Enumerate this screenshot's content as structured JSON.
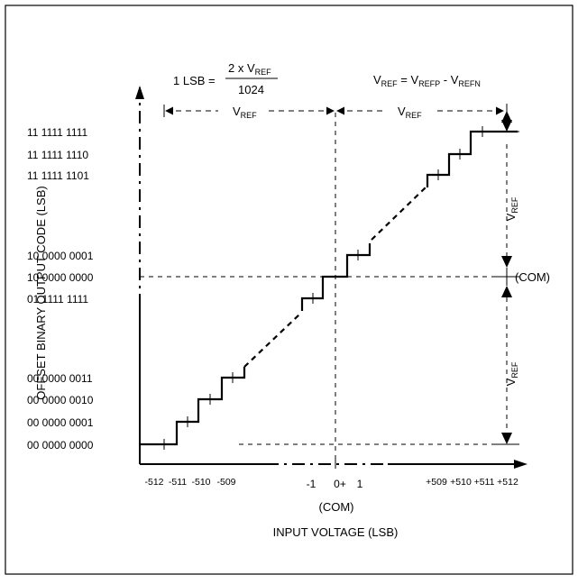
{
  "header": {
    "lsb_lhs": "1 LSB =",
    "lsb_num": "2 x V",
    "lsb_num_sub": "REF",
    "lsb_den": "1024",
    "vref_eq_v": "V",
    "vref_eq_sub1": "REF",
    "vref_eq_mid": " = V",
    "vref_eq_sub2": "REFP",
    "vref_eq_dash": " - V",
    "vref_eq_sub3": "REFN"
  },
  "dimensions": {
    "vref_v": "V",
    "vref_sub": "REF",
    "com": "(COM)"
  },
  "axes": {
    "y_label": "OFFSET BINARY OUTPUT CODE (LSB)",
    "x_label": "INPUT VOLTAGE (LSB)",
    "x_com": "(COM)"
  },
  "y_codes": [
    "11 1111 1111",
    "11 1111 1110",
    "11 1111 1101",
    "10 0000 0001",
    "10 0000 0000",
    "01 1111 1111",
    "00 0000 0011",
    "00 0000 0010",
    "00 0000 0001",
    "00 0000 0000"
  ],
  "x_ticks": {
    "left": [
      "-512",
      "-511",
      "-510",
      "-509"
    ],
    "center": [
      "-1",
      "0+",
      "1"
    ],
    "right": [
      "+509",
      "+510",
      "+511",
      "+512"
    ]
  }
}
